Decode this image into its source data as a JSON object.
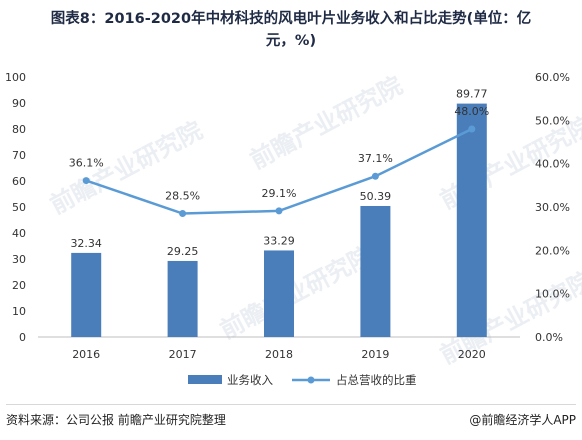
{
  "title_line1": "图表8：2016-2020年中材科技的风电叶片业务收入和占比走势(单位：亿",
  "title_line2": "元，%)",
  "footer": {
    "source": "资料来源：公司公报 前瞻产业研究院整理",
    "brand": "@前瞻经济学人APP"
  },
  "watermark": "前瞻产业研究院",
  "colors": {
    "bar": "#4a7ebb",
    "line": "#5b9bd5",
    "title": "#1f2a44"
  },
  "chart_data": {
    "type": "bar",
    "categories": [
      "2016",
      "2017",
      "2018",
      "2019",
      "2020"
    ],
    "series": [
      {
        "name": "业务收入",
        "type": "bar",
        "axis": "left",
        "values": [
          32.34,
          29.25,
          33.29,
          50.39,
          89.77
        ],
        "labels": [
          "32.34",
          "29.25",
          "33.29",
          "50.39",
          "89.77"
        ]
      },
      {
        "name": "占总营收的比重",
        "type": "line",
        "axis": "right",
        "values": [
          36.1,
          28.5,
          29.1,
          37.1,
          48.0
        ],
        "labels": [
          "36.1%",
          "28.5%",
          "29.1%",
          "37.1%",
          "48.0%"
        ]
      }
    ],
    "y_left": {
      "min": 0,
      "max": 100,
      "ticks": [
        "0",
        "10",
        "20",
        "30",
        "40",
        "50",
        "60",
        "70",
        "80",
        "90",
        "100"
      ]
    },
    "y_right": {
      "min": 0,
      "max": 60,
      "ticks": [
        "0.0%",
        "10.0%",
        "20.0%",
        "30.0%",
        "40.0%",
        "50.0%",
        "60.0%"
      ]
    },
    "grid": false,
    "legend_position": "bottom"
  }
}
